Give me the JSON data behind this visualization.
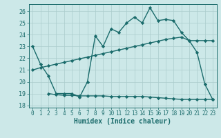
{
  "line1_x": [
    0,
    1,
    2,
    3,
    4,
    5,
    6,
    7,
    8,
    9,
    10,
    11,
    12,
    13,
    14,
    15,
    16,
    17,
    18,
    19,
    20,
    21,
    22,
    23
  ],
  "line1_y": [
    23.0,
    21.5,
    20.5,
    19.0,
    19.0,
    19.0,
    18.7,
    20.0,
    23.9,
    23.0,
    24.5,
    24.2,
    25.0,
    25.5,
    25.0,
    26.3,
    25.2,
    25.3,
    25.2,
    24.2,
    23.5,
    22.5,
    19.8,
    18.5
  ],
  "line2_x": [
    0,
    1,
    2,
    3,
    4,
    5,
    6,
    7,
    8,
    9,
    10,
    11,
    12,
    13,
    14,
    15,
    16,
    17,
    18,
    19,
    20,
    21,
    22,
    23
  ],
  "line2_y": [
    21.0,
    21.2,
    21.35,
    21.5,
    21.65,
    21.8,
    21.95,
    22.1,
    22.25,
    22.4,
    22.55,
    22.7,
    22.85,
    23.0,
    23.15,
    23.3,
    23.45,
    23.6,
    23.7,
    23.8,
    23.5,
    23.5,
    23.5,
    23.5
  ],
  "line3_x": [
    2,
    3,
    4,
    5,
    6,
    7,
    8,
    9,
    10,
    11,
    12,
    13,
    14,
    15,
    16,
    17,
    18,
    19,
    20,
    21,
    22,
    23
  ],
  "line3_y": [
    19.0,
    18.9,
    18.85,
    18.85,
    18.8,
    18.8,
    18.8,
    18.8,
    18.75,
    18.75,
    18.75,
    18.75,
    18.75,
    18.7,
    18.65,
    18.6,
    18.55,
    18.5,
    18.5,
    18.5,
    18.5,
    18.5
  ],
  "line_color": "#1a6b6b",
  "bg_color": "#cce8e8",
  "grid_color": "#aacccc",
  "xlabel": "Humidex (Indice chaleur)",
  "xlim": [
    -0.5,
    23.5
  ],
  "ylim": [
    17.8,
    26.6
  ],
  "yticks": [
    18,
    19,
    20,
    21,
    22,
    23,
    24,
    25,
    26
  ],
  "xticks": [
    0,
    1,
    2,
    3,
    4,
    5,
    6,
    7,
    8,
    9,
    10,
    11,
    12,
    13,
    14,
    15,
    16,
    17,
    18,
    19,
    20,
    21,
    22,
    23
  ],
  "marker": "D",
  "markersize": 2.2,
  "linewidth": 1.0
}
